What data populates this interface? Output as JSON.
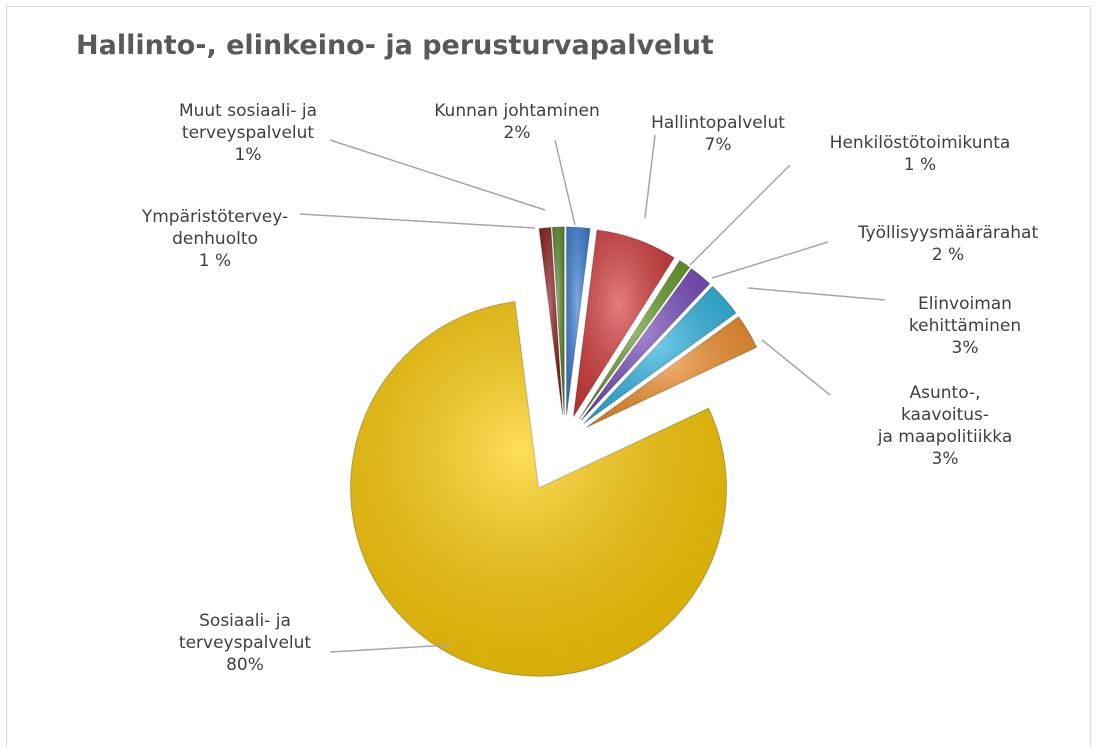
{
  "chart_data": {
    "type": "pie",
    "title": "Hallinto-, elinkeino- ja perusturvapalvelut",
    "categories": [
      "Kunnan johtaminen",
      "Hallintopalvelut",
      "Henkilöstötoimikunta",
      "Työllisyysmäärärahat",
      "Elinvoiman\nkehittäminen",
      "Asunto-, kaavoitus-\nja maapolitiikka",
      "Sosiaali- ja\nterveyspalvelut",
      "Ympäristötervey-\ndenhuolto",
      "Muut sosiaali- ja\nterveyspalvelut"
    ],
    "values": [
      2,
      7,
      1,
      2,
      3,
      3,
      80,
      1,
      1
    ],
    "value_labels": [
      "2%",
      "7%",
      "1 %",
      "2 %",
      "3%",
      "3%",
      "80%",
      "1 %",
      "1%"
    ],
    "colors": [
      "#3a7fd5",
      "#d63a3a",
      "#6aa12a",
      "#7a4dbf",
      "#2fb7e6",
      "#f5902a",
      "#ffcc00",
      "#8b1a1a",
      "#5a8a2a"
    ]
  }
}
